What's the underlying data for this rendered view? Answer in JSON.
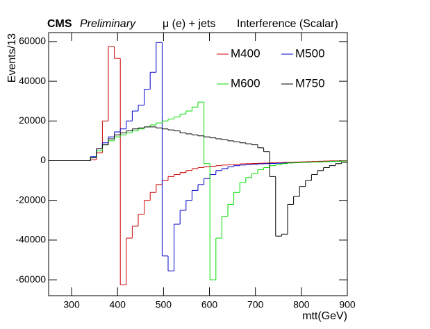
{
  "chart_data": {
    "type": "step-histogram",
    "title_bold": "CMS",
    "title_italic": "Preliminary",
    "channel": "μ (e) + jets",
    "subtitle": "Interference (Scalar)",
    "x_label": "mtt(GeV)",
    "y_label": "Events/13",
    "bins": [
      250,
      263,
      276,
      289,
      302,
      315,
      328,
      341,
      354,
      367,
      380,
      393,
      406,
      419,
      432,
      445,
      458,
      471,
      484,
      497,
      510,
      523,
      536,
      549,
      562,
      575,
      588,
      601,
      614,
      627,
      640,
      653,
      666,
      679,
      692,
      705,
      718,
      731,
      744,
      757,
      770,
      783,
      796,
      809,
      822,
      835,
      848,
      861,
      874,
      887,
      900
    ],
    "xlim": [
      250,
      900
    ],
    "xticks": [
      300,
      400,
      500,
      600,
      700,
      800,
      900
    ],
    "ylim": [
      -68000,
      64500
    ],
    "yticks": [
      -60000,
      -40000,
      -20000,
      0,
      20000,
      40000,
      60000
    ],
    "series": [
      {
        "name": "M400",
        "color": "#cc0000",
        "values": [
          0,
          0,
          0,
          0,
          0,
          0,
          0,
          500,
          4000,
          20000,
          57500,
          51500,
          -62500,
          -39000,
          -33000,
          -27000,
          -20000,
          -16000,
          -12000,
          -10000,
          -8000,
          -7000,
          -6000,
          -5000,
          -4000,
          -3500,
          -3000,
          -2800,
          -2500,
          -2200,
          -2000,
          -1800,
          -1600,
          -1500,
          -1400,
          -1300,
          -1200,
          -1100,
          -1000,
          -900,
          -800,
          -700,
          -600,
          -500,
          -400,
          -300,
          -200,
          -100,
          -100,
          0
        ]
      },
      {
        "name": "M500",
        "color": "#0000cc",
        "values": [
          0,
          0,
          0,
          0,
          0,
          0,
          0,
          2000,
          6000,
          9000,
          12000,
          14500,
          16000,
          20000,
          25000,
          28000,
          36000,
          44500,
          59500,
          -48000,
          -55500,
          -32000,
          -25000,
          -20000,
          -15000,
          -12000,
          -9000,
          -7000,
          -5000,
          -4000,
          -3000,
          -2500,
          -2200,
          -2000,
          -1800,
          -1600,
          -1500,
          -1400,
          -1300,
          -1200,
          -1100,
          -1000,
          -900,
          -800,
          -700,
          -600,
          -500,
          -400,
          -300,
          -200
        ]
      },
      {
        "name": "M600",
        "color": "#00dd00",
        "values": [
          0,
          0,
          0,
          0,
          0,
          0,
          0,
          1500,
          5000,
          8000,
          10000,
          12000,
          13000,
          14000,
          15000,
          16000,
          17000,
          18000,
          19000,
          20000,
          21000,
          22000,
          23500,
          25000,
          27000,
          29500,
          -1500,
          -60000,
          -39000,
          -28000,
          -22000,
          -16000,
          -11000,
          -8500,
          -6500,
          -4500,
          -3500,
          -2500,
          -2000,
          -1500,
          -1200,
          -1000,
          -900,
          -800,
          -700,
          -600,
          -500,
          -400,
          -300,
          -200
        ]
      },
      {
        "name": "M750",
        "color": "#000000",
        "values": [
          0,
          0,
          0,
          0,
          0,
          0,
          0,
          1500,
          6000,
          8000,
          11000,
          13000,
          14000,
          15000,
          16000,
          16500,
          17000,
          17000,
          16500,
          16000,
          15500,
          15000,
          14000,
          13500,
          13000,
          12500,
          12000,
          11500,
          11000,
          10500,
          10000,
          9500,
          9000,
          8500,
          8000,
          6500,
          4500,
          -8000,
          -38000,
          -37000,
          -22000,
          -18000,
          -13000,
          -10000,
          -7000,
          -5000,
          -3500,
          -2500,
          -1500,
          -800
        ]
      }
    ]
  }
}
